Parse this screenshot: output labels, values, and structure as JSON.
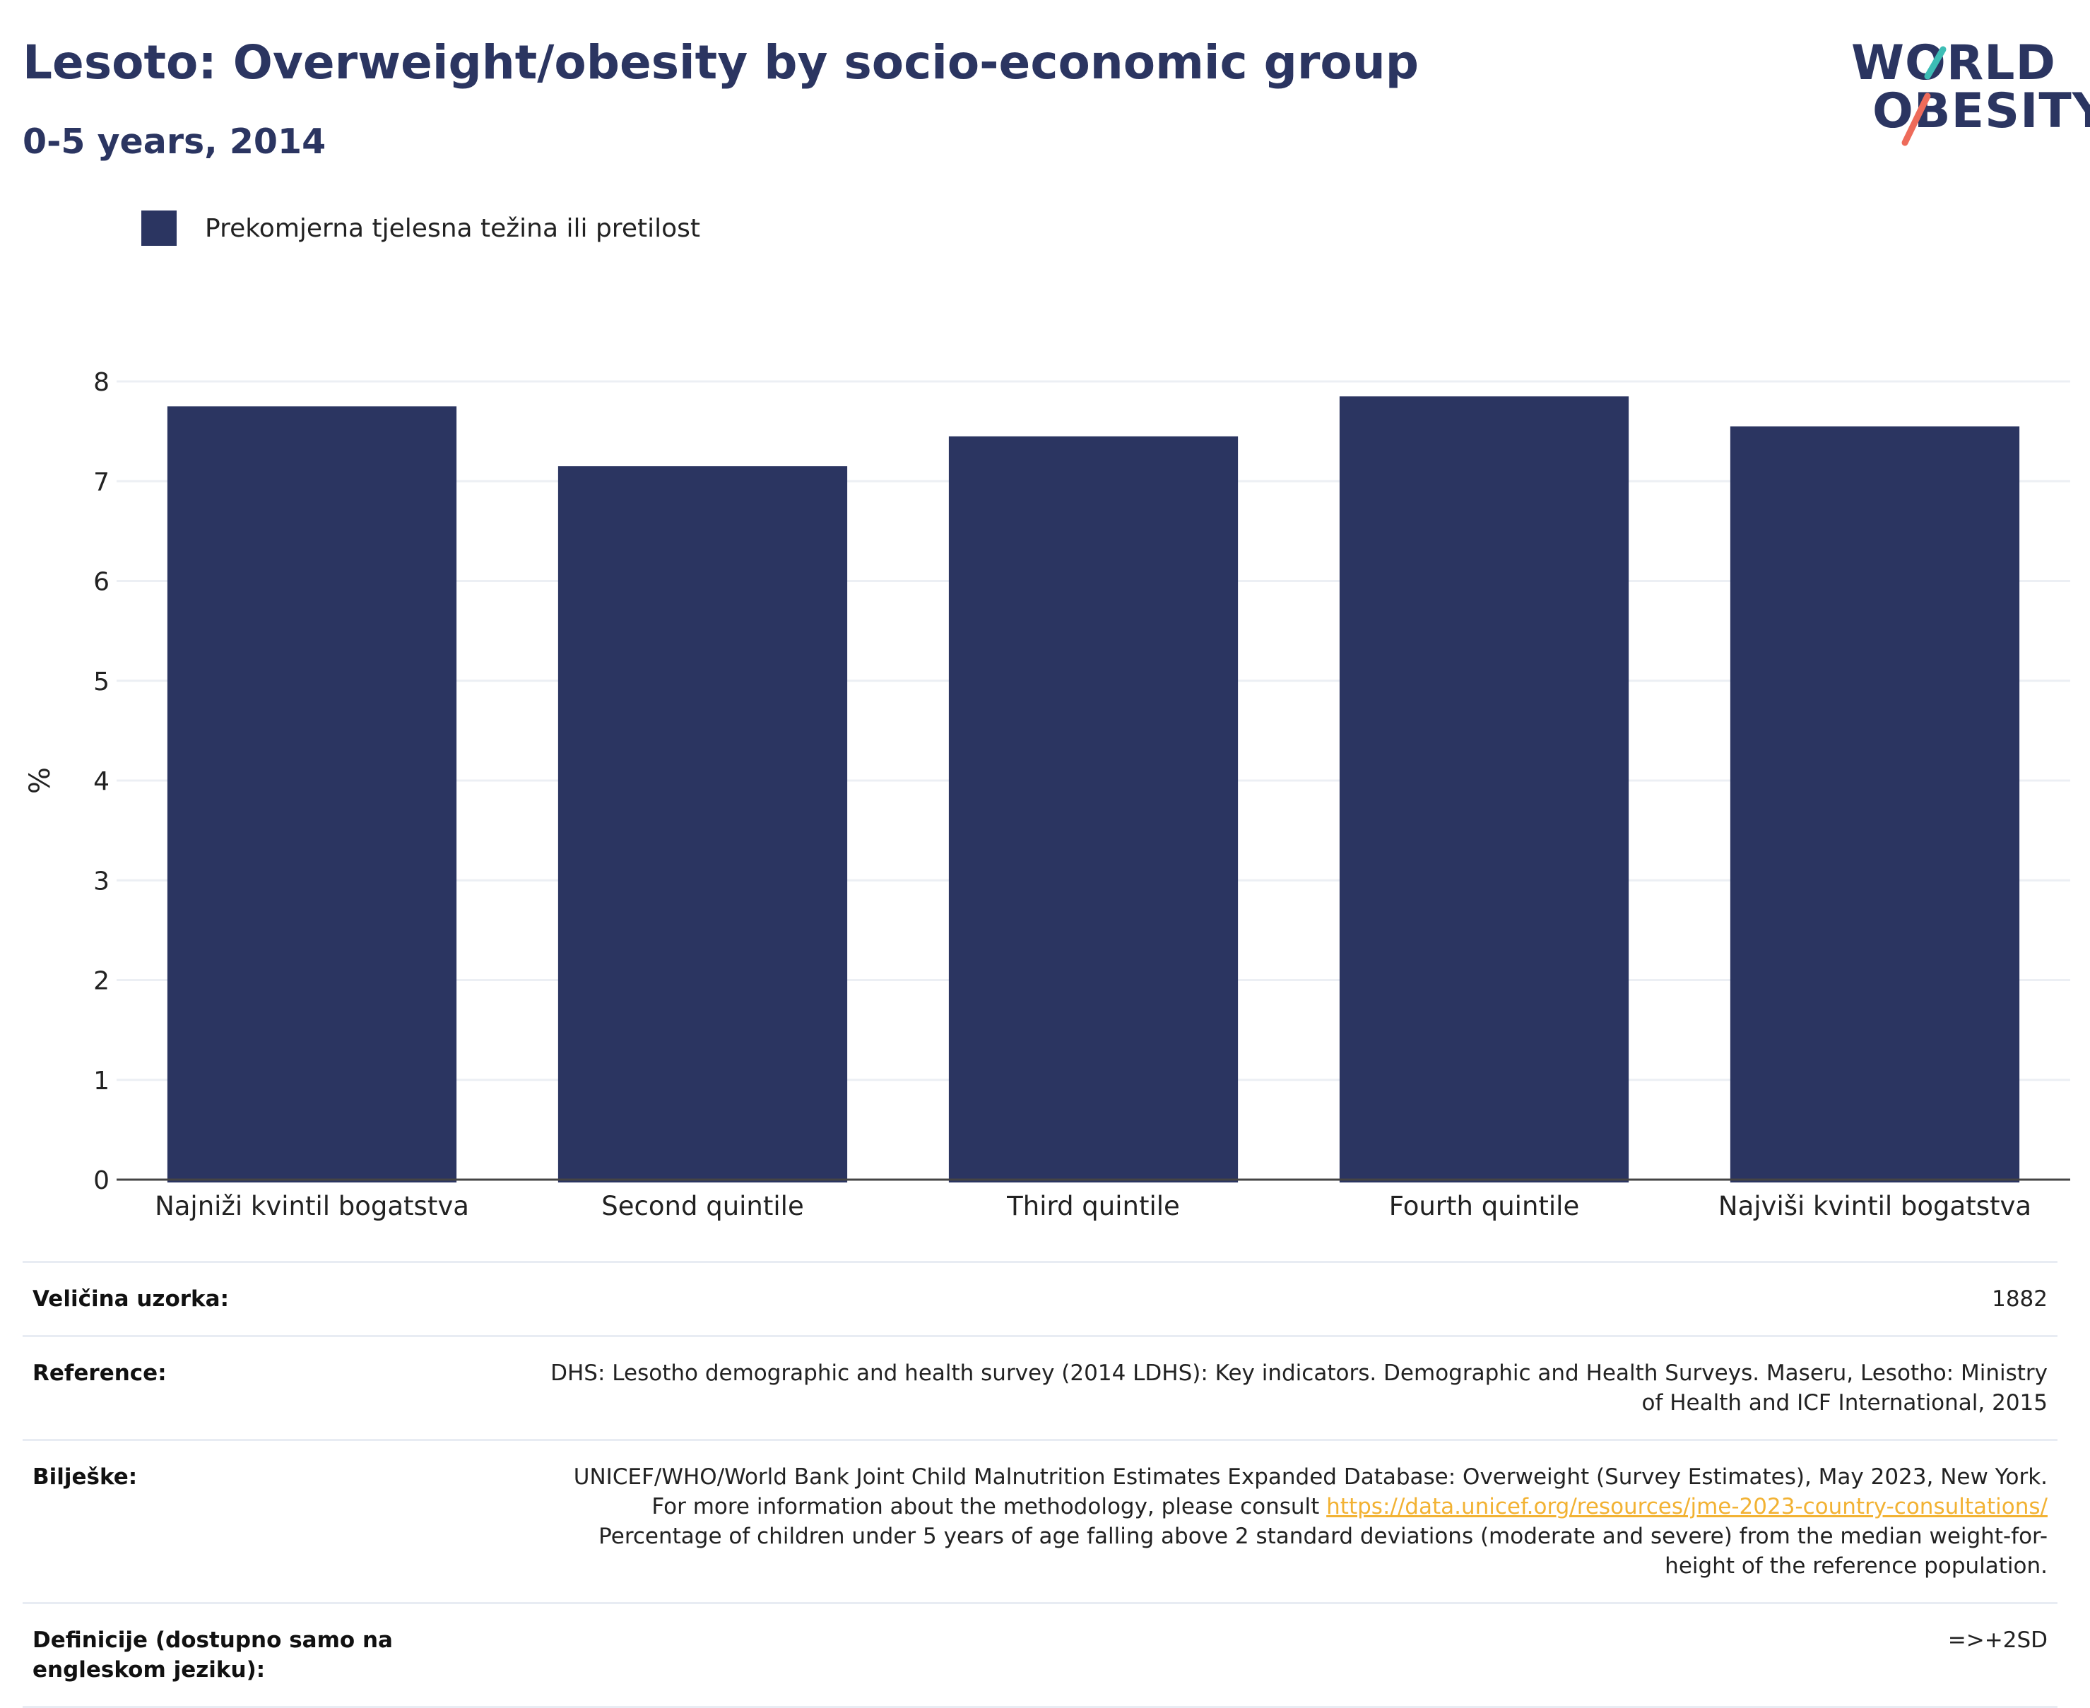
{
  "header": {
    "title": "Lesoto: Overweight/obesity by socio-economic group",
    "subtitle": "0-5 years, 2014"
  },
  "logo": {
    "line1": "WORLD",
    "line2": "OBESITY",
    "stroke_colors": [
      "#3dbdb5",
      "#ee6b5a"
    ]
  },
  "legend": {
    "label": "Prekomjerna tjelesna težina ili pretilost",
    "color": "#2b3561"
  },
  "chart_data": {
    "type": "bar",
    "categories": [
      "Najniži kvintil bogatstva",
      "Second quintile",
      "Third quintile",
      "Fourth quintile",
      "Najviši kvintil bogatstva"
    ],
    "series": [
      {
        "name": "Prekomjerna tjelesna težina ili pretilost",
        "values": [
          7.75,
          7.15,
          7.45,
          7.85,
          7.55
        ],
        "color": "#2b3561"
      }
    ],
    "ylabel": "%",
    "ylim": [
      0,
      8
    ],
    "yticks": [
      "0",
      "1",
      "2",
      "3",
      "4",
      "5",
      "6",
      "7",
      "8"
    ],
    "grid": true,
    "legend_position": "top-left"
  },
  "meta": {
    "rows": [
      {
        "key": "Veličina uzorka:",
        "value": "1882"
      },
      {
        "key": "Reference:",
        "value": "DHS: Lesotho demographic and health survey (2014 LDHS): Key indicators. Demographic and Health Surveys. Maseru, Lesotho: Ministry of Health and ICF International, 2015"
      },
      {
        "key": "Bilješke:",
        "value_pre": "UNICEF/WHO/World Bank Joint Child Malnutrition Estimates Expanded Database: Overweight (Survey Estimates), May 2023, New York. For more information about the methodology, please consult ",
        "link": "https://data.unicef.org/resources/jme-2023-country-consultations/",
        "value_post": " Percentage of children under 5 years of age falling above 2 standard deviations (moderate and severe) from the median weight-for-height of the reference population."
      },
      {
        "key": "Definicije (dostupno samo na engleskom jeziku):",
        "value": "=>+2SD"
      }
    ]
  }
}
